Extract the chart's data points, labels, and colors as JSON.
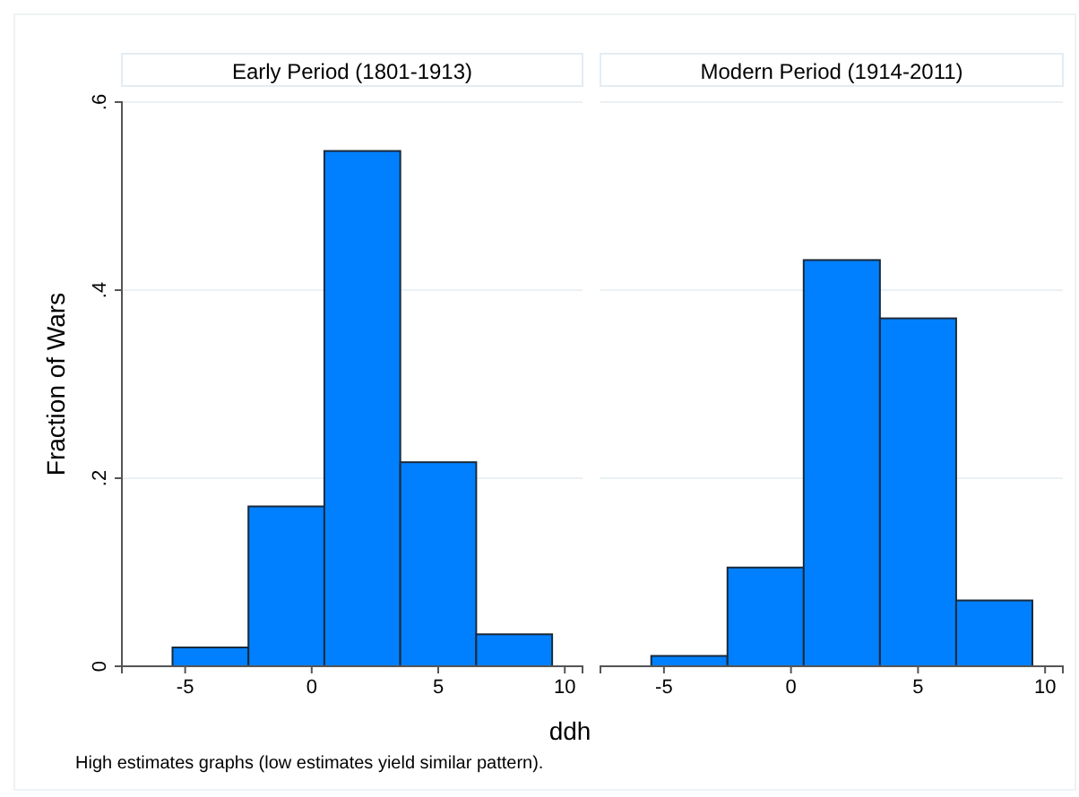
{
  "chart_data": [
    {
      "type": "histogram",
      "title": "Early Period (1801-1913)",
      "xlabel": "ddh",
      "ylabel": "Fraction of Wars",
      "annotations": [
        "High estimates graphs (low estimates yield similar pattern)."
      ],
      "bins": [
        -5.5,
        -2.5,
        0.5,
        3.5,
        6.5,
        9.5
      ],
      "values": [
        0.02,
        0.17,
        0.548,
        0.217,
        0.034
      ],
      "color": "#0080ff",
      "xlim": [
        -7.5,
        10.7
      ],
      "xticks": [
        -5,
        0,
        5,
        10
      ],
      "ylim": [
        0,
        0.6
      ],
      "yticks": [
        {
          "value": 0,
          "label": "0"
        },
        {
          "value": 0.2,
          "label": ".2"
        },
        {
          "value": 0.4,
          "label": ".4"
        },
        {
          "value": 0.6,
          "label": ".6"
        }
      ],
      "grid": "y"
    },
    {
      "type": "histogram",
      "title": "Modern Period (1914-2011)",
      "bins": [
        -5.5,
        -2.5,
        0.5,
        3.5,
        6.5,
        9.5
      ],
      "values": [
        0.011,
        0.105,
        0.432,
        0.37,
        0.07
      ],
      "color": "#0080ff",
      "xlim": [
        -7.5,
        10.7
      ],
      "xticks": [
        -5,
        0,
        5,
        10
      ],
      "ylim": [
        0,
        0.6
      ],
      "yticks": [
        0,
        0.2,
        0.4,
        0.6
      ],
      "grid": "y",
      "tick_labels": "x"
    }
  ]
}
